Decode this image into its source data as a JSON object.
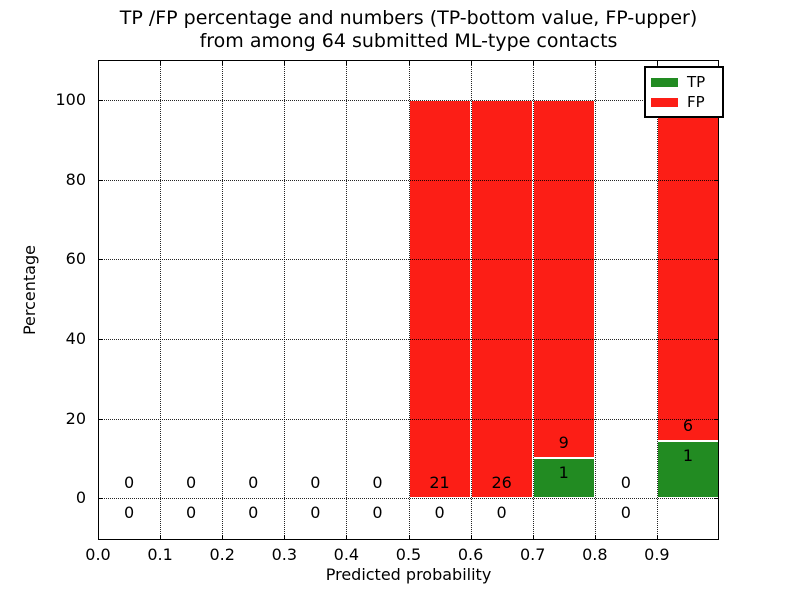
{
  "chart_data": {
    "type": "bar",
    "stacked": true,
    "title": "TP /FP percentage and numbers (TP-bottom value, FP-upper) from among 64 submitted ML-type contacts",
    "title_lines": [
      "TP /FP percentage and numbers (TP-bottom value, FP-upper)",
      "from among 64 submitted ML-type contacts"
    ],
    "xlabel": "Predicted probability",
    "ylabel": "Percentage",
    "xlim": [
      0.0,
      1.0
    ],
    "ylim": [
      -10.5,
      110
    ],
    "x_tick_labels": [
      "0.0",
      "0.1",
      "0.2",
      "0.3",
      "0.4",
      "0.5",
      "0.6",
      "0.7",
      "0.8",
      "0.9"
    ],
    "y_tick_labels": [
      "0",
      "20",
      "40",
      "60",
      "80",
      "100"
    ],
    "y_ticks": [
      0,
      20,
      40,
      60,
      80,
      100
    ],
    "grid": "dotted",
    "legend_position": "upper right",
    "legend": [
      {
        "label": "TP",
        "series": "tp"
      },
      {
        "label": "FP",
        "series": "fp"
      }
    ],
    "colors": {
      "tp": "#228b22",
      "fp": "#fc1e16",
      "grid": "#000000",
      "axis": "#000000",
      "text": "#000000",
      "background": "#ffffff"
    },
    "bins": [
      {
        "x_start": 0.0,
        "x_end": 0.1,
        "tp_count": 0,
        "fp_count": 0,
        "tp_pct": 0,
        "fp_pct": 0
      },
      {
        "x_start": 0.1,
        "x_end": 0.2,
        "tp_count": 0,
        "fp_count": 0,
        "tp_pct": 0,
        "fp_pct": 0
      },
      {
        "x_start": 0.2,
        "x_end": 0.3,
        "tp_count": 0,
        "fp_count": 0,
        "tp_pct": 0,
        "fp_pct": 0
      },
      {
        "x_start": 0.3,
        "x_end": 0.4,
        "tp_count": 0,
        "fp_count": 0,
        "tp_pct": 0,
        "fp_pct": 0
      },
      {
        "x_start": 0.4,
        "x_end": 0.5,
        "tp_count": 0,
        "fp_count": 0,
        "tp_pct": 0,
        "fp_pct": 0
      },
      {
        "x_start": 0.5,
        "x_end": 0.6,
        "tp_count": 0,
        "fp_count": 21,
        "tp_pct": 0,
        "fp_pct": 100
      },
      {
        "x_start": 0.6,
        "x_end": 0.7,
        "tp_count": 0,
        "fp_count": 26,
        "tp_pct": 0,
        "fp_pct": 100
      },
      {
        "x_start": 0.7,
        "x_end": 0.8,
        "tp_count": 1,
        "fp_count": 9,
        "tp_pct": 10,
        "fp_pct": 90
      },
      {
        "x_start": 0.8,
        "x_end": 0.9,
        "tp_count": 0,
        "fp_count": 0,
        "tp_pct": 0,
        "fp_pct": 0
      },
      {
        "x_start": 0.9,
        "x_end": 1.0,
        "tp_count": 1,
        "fp_count": 6,
        "tp_pct": 14.29,
        "fp_pct": 85.71
      }
    ]
  }
}
